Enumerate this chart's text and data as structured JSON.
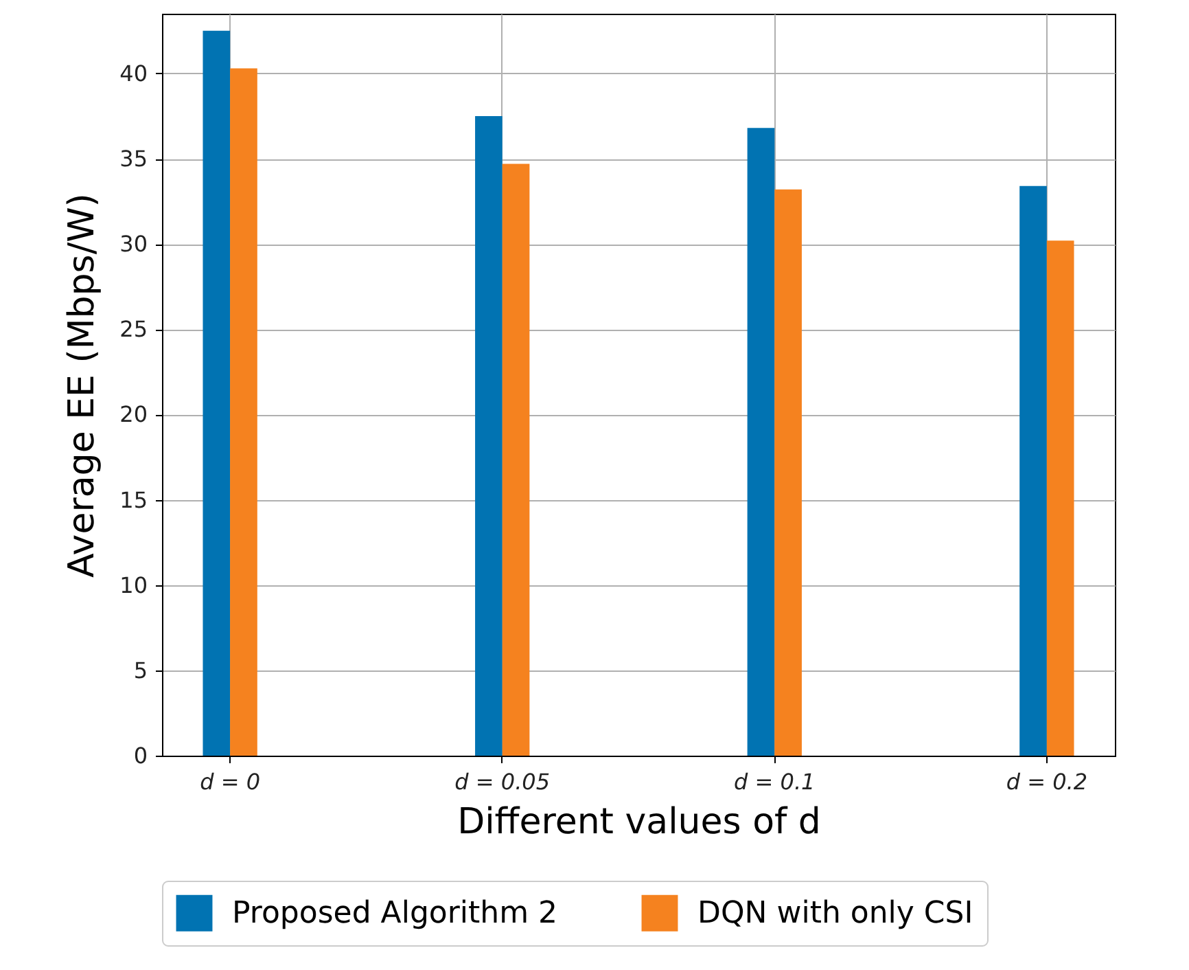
{
  "chart_data": {
    "type": "bar",
    "xlabel": "Different values of d",
    "ylabel": "Average EE (Mbps/W)",
    "categories": [
      "d = 0",
      "d = 0.05",
      "d = 0.1",
      "d = 0.2"
    ],
    "series": [
      {
        "name": "Proposed Algorithm 2",
        "color": "#0173b2",
        "values": [
          42.5,
          37.5,
          36.8,
          33.4
        ]
      },
      {
        "name": "DQN with only CSI",
        "color": "#f5821f",
        "values": [
          40.3,
          34.7,
          33.2,
          30.2
        ]
      }
    ],
    "ylim": [
      0,
      43.5
    ],
    "yticks": [
      0,
      5,
      10,
      15,
      20,
      25,
      30,
      35,
      40
    ],
    "grid": true,
    "legend": "bottom"
  }
}
